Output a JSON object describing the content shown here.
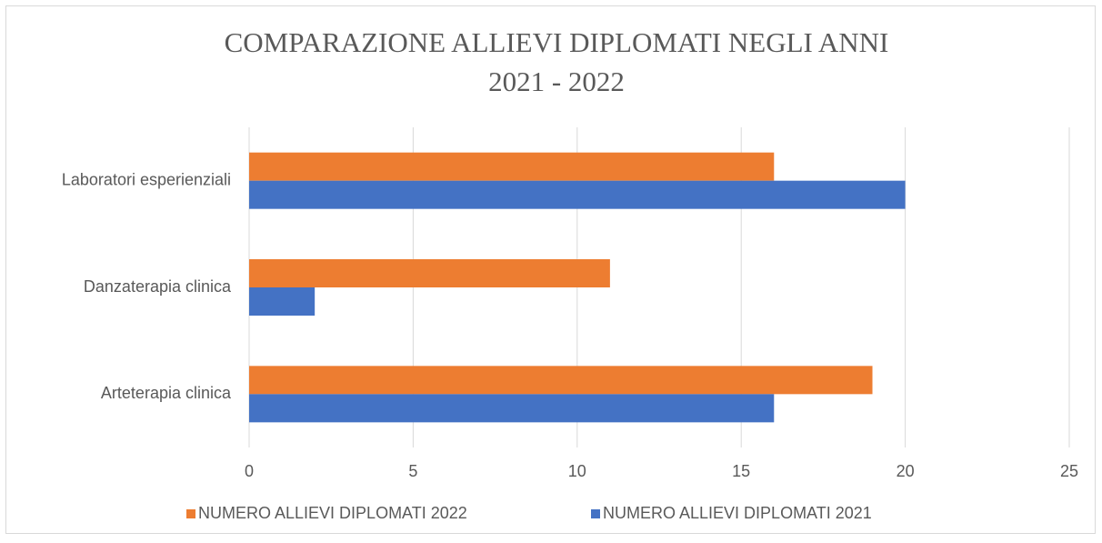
{
  "chart_data": {
    "type": "bar",
    "orientation": "horizontal",
    "title": [
      "COMPARAZIONE  ALLIEVI DIPLOMATI NEGLI ANNI",
      "2021 - 2022"
    ],
    "categories": [
      "Laboratori esperienziali",
      "Danzaterapia clinica",
      "Arteterapia clinica"
    ],
    "series": [
      {
        "name": "NUMERO ALLIEVI DIPLOMATI 2022",
        "color": "#ed7d31",
        "values": [
          16,
          11,
          19
        ]
      },
      {
        "name": "NUMERO ALLIEVI DIPLOMATI 2021",
        "color": "#4472c4",
        "values": [
          20,
          2,
          16
        ]
      }
    ],
    "xlim": [
      0,
      25
    ],
    "xticks": [
      0,
      5,
      10,
      15,
      20,
      25
    ],
    "grid": true,
    "legend": "bottom"
  }
}
